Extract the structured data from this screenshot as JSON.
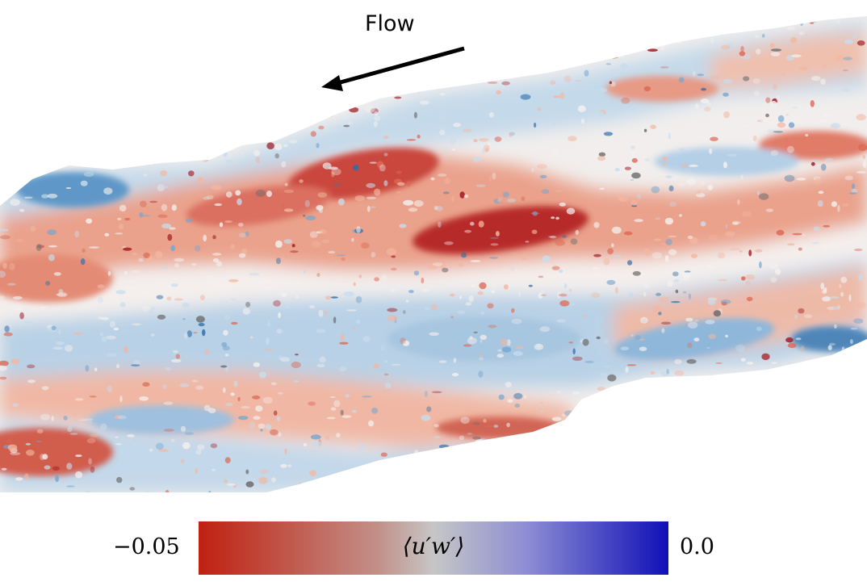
{
  "annotation": {
    "flow_label": "Flow"
  },
  "colorbar": {
    "label": "⟨u′w′⟩",
    "min_label": "−0.05",
    "max_label": "0.0",
    "colors": {
      "negative": "#c0200f",
      "neutral": "#c6c6c6",
      "zero": "#1010b8"
    }
  },
  "field_colors": {
    "deep_red": "#a0141e",
    "red": "#dc6a55",
    "light_red": "#f3b7a0",
    "white": "#f4f0ee",
    "light_blue": "#c9dcec",
    "blue": "#76a6cf",
    "deep_blue": "#2f6fa8",
    "gap": "#6b6b6b"
  }
}
